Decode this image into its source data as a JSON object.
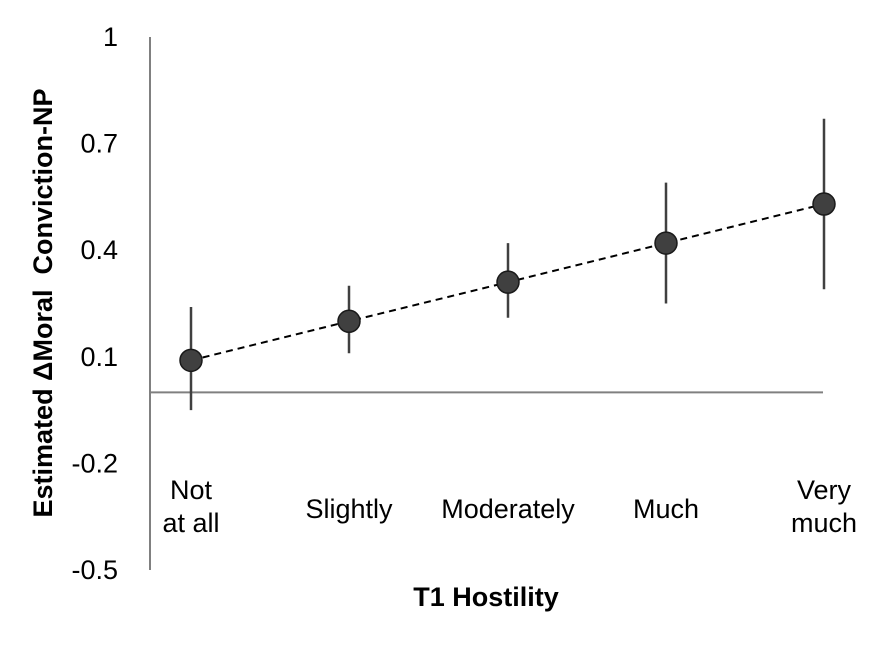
{
  "chart_data": {
    "type": "scatter",
    "title": "",
    "xlabel": "T1 Hostility",
    "ylabel": "Estimated ΔMoral  Conviction-NP",
    "categories": [
      [
        "Not",
        "at all"
      ],
      [
        "Slightly"
      ],
      [
        "Moderately"
      ],
      [
        "Much"
      ],
      [
        "Very",
        "much"
      ]
    ],
    "values": [
      0.09,
      0.2,
      0.31,
      0.42,
      0.53
    ],
    "error_low": [
      -0.05,
      0.11,
      0.21,
      0.25,
      0.29
    ],
    "error_high": [
      0.24,
      0.3,
      0.42,
      0.59,
      0.77
    ],
    "yticks": [
      1,
      0.7,
      0.4,
      0.1,
      -0.2,
      -0.5
    ],
    "ytick_labels": [
      "1",
      "0.7",
      "0.4",
      "0.1",
      "-0.2",
      "-0.5"
    ],
    "ylim": [
      -0.5,
      1
    ],
    "reference_line": 0,
    "trend_line": "dashed",
    "grid": false,
    "legend": "none",
    "colors": {
      "marker": "#404040",
      "error_bar": "#404040",
      "axis": "#808080",
      "trend": "#000000"
    }
  }
}
